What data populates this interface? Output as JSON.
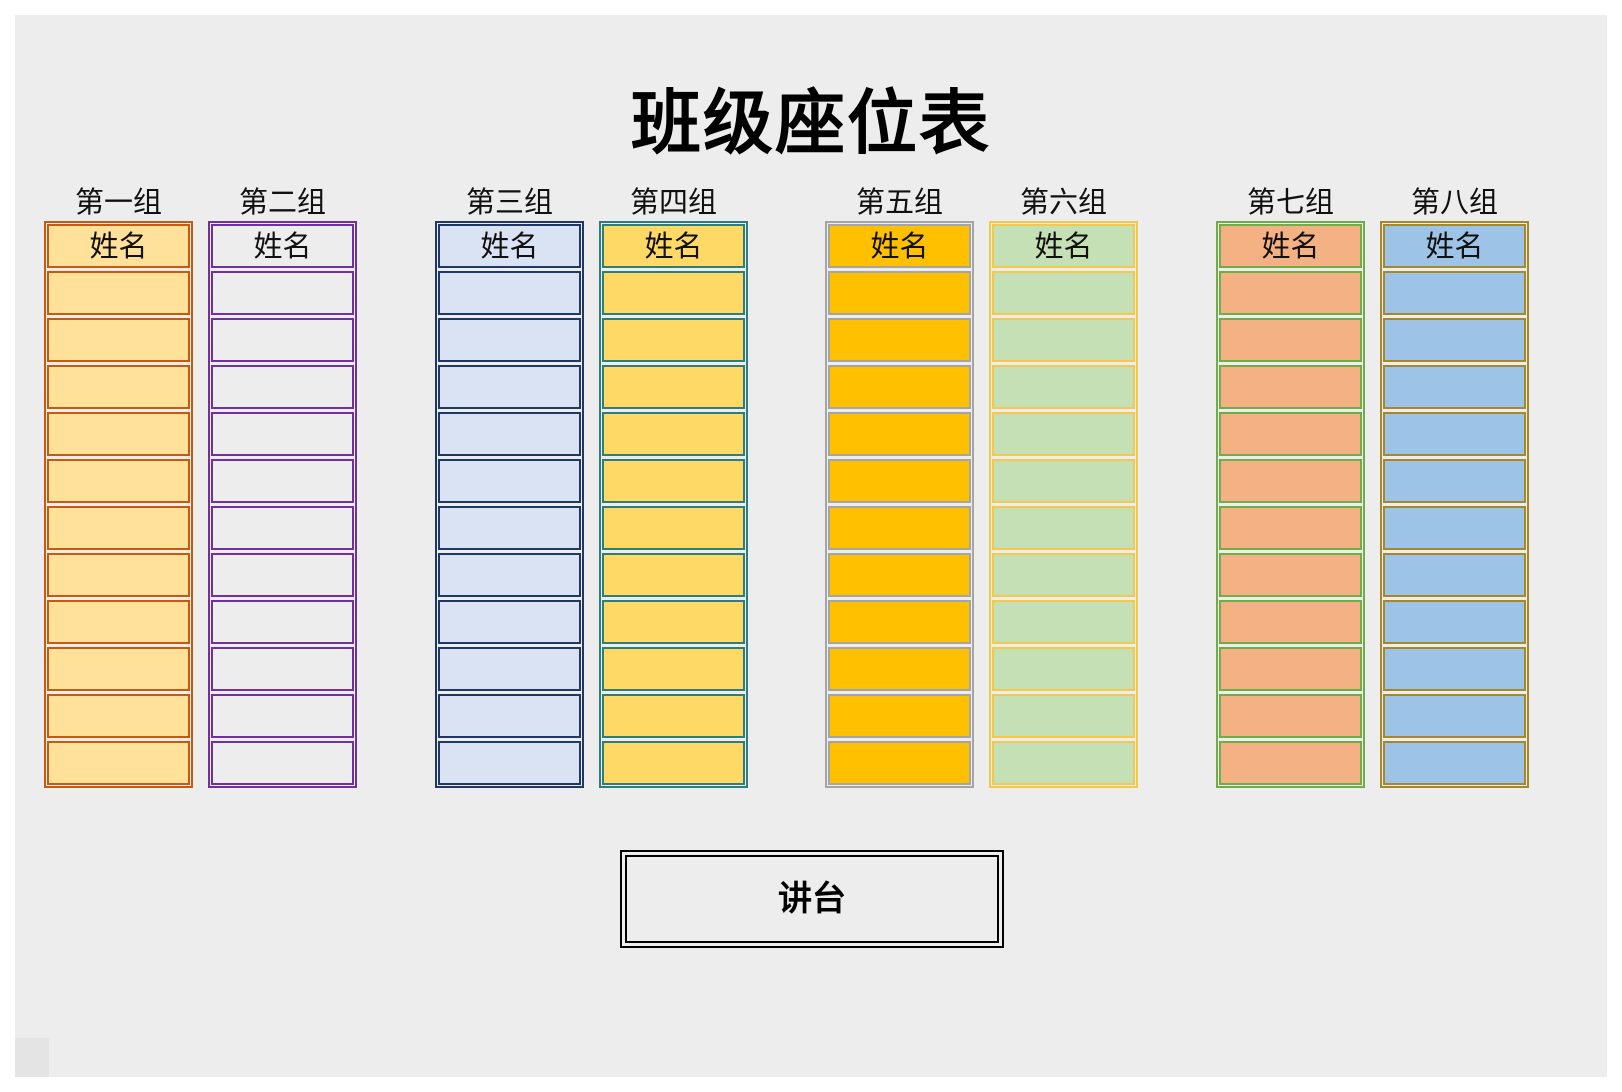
{
  "title": "班级座位表",
  "header_cell": "姓名",
  "rows_per_group": 11,
  "podium": "讲台",
  "groups": [
    {
      "label": "第一组",
      "fill": "#ffe199",
      "border": "#c55a11"
    },
    {
      "label": "第二组",
      "fill": "#ededed",
      "border": "#7030a0"
    },
    {
      "label": "第三组",
      "fill": "#dae3f3",
      "border": "#1f3864"
    },
    {
      "label": "第四组",
      "fill": "#ffd966",
      "border": "#2e7d7d"
    },
    {
      "label": "第五组",
      "fill": "#ffc000",
      "border": "#a5a5a5"
    },
    {
      "label": "第六组",
      "fill": "#c5e0b4",
      "border": "#f2c94c"
    },
    {
      "label": "第七组",
      "fill": "#f4b183",
      "border": "#70ad47"
    },
    {
      "label": "第八组",
      "fill": "#9dc3e6",
      "border": "#a5882a"
    }
  ]
}
